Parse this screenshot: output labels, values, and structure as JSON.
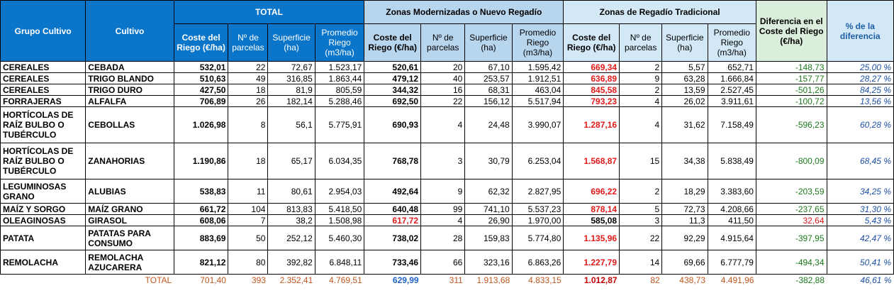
{
  "headers": {
    "grupo": "Grupo Cultivo",
    "cultivo": "Cultivo",
    "total": "TOTAL",
    "modernizadas": "Zonas Modernizadas o Nuevo Regadío",
    "tradicional": "Zonas de Regadío Tradicional",
    "diferencia": "Diferencia en el Coste del Riego (€/ha)",
    "pct": "% de la diferencia",
    "coste": "Coste del Riego (€/ha)",
    "parcelas": "Nº de parcelas",
    "superficie": "Superficie (ha)",
    "promedio": "Promedio Riego (m3/ha)"
  },
  "rows": [
    {
      "grupo": "CEREALES",
      "cultivo": "CEBADA",
      "t_coste": "532,01",
      "t_parc": "22",
      "t_sup": "72,67",
      "t_prom": "1.523,17",
      "m_coste": "520,61",
      "m_parc": "20",
      "m_sup": "67,10",
      "m_prom": "1.595,42",
      "r_coste": "669,34",
      "r_parc": "2",
      "r_sup": "5,57",
      "r_prom": "652,71",
      "dif": "-148,73",
      "pct": "25,00 %"
    },
    {
      "grupo": "CEREALES",
      "cultivo": "TRIGO BLANDO",
      "t_coste": "510,63",
      "t_parc": "49",
      "t_sup": "316,85",
      "t_prom": "1.863,44",
      "m_coste": "479,12",
      "m_parc": "40",
      "m_sup": "253,57",
      "m_prom": "1.912,51",
      "r_coste": "636,89",
      "r_parc": "9",
      "r_sup": "63,28",
      "r_prom": "1.666,84",
      "dif": "-157,77",
      "pct": "28,27 %"
    },
    {
      "grupo": "CEREALES",
      "cultivo": "TRIGO DURO",
      "t_coste": "427,50",
      "t_parc": "18",
      "t_sup": "81,9",
      "t_prom": "805,59",
      "m_coste": "344,32",
      "m_parc": "16",
      "m_sup": "68,31",
      "m_prom": "463,04",
      "r_coste": "845,58",
      "r_parc": "2",
      "r_sup": "13,59",
      "r_prom": "2.527,45",
      "dif": "-501,26",
      "pct": "84,25 %"
    },
    {
      "grupo": "FORRAJERAS",
      "cultivo": "ALFALFA",
      "t_coste": "706,89",
      "t_parc": "26",
      "t_sup": "182,14",
      "t_prom": "5.288,46",
      "m_coste": "692,50",
      "m_parc": "22",
      "m_sup": "156,12",
      "m_prom": "5.517,94",
      "r_coste": "793,23",
      "r_parc": "4",
      "r_sup": "26,02",
      "r_prom": "3.911,61",
      "dif": "-100,72",
      "pct": "13,56 %"
    },
    {
      "grupo": "HORTÍCOLAS DE RAÍZ BULBO O TUBÉRCULO",
      "cultivo": "CEBOLLAS",
      "t_coste": "1.026,98",
      "t_parc": "8",
      "t_sup": "56,1",
      "t_prom": "5.775,91",
      "m_coste": "690,93",
      "m_parc": "4",
      "m_sup": "24,48",
      "m_prom": "3.990,07",
      "r_coste": "1.287,16",
      "r_parc": "4",
      "r_sup": "31,62",
      "r_prom": "7.158,49",
      "dif": "-596,23",
      "pct": "60,28 %"
    },
    {
      "grupo": "HORTÍCOLAS DE RAÍZ BULBO O TUBÉRCULO",
      "cultivo": "ZANAHORIAS",
      "t_coste": "1.190,86",
      "t_parc": "18",
      "t_sup": "65,17",
      "t_prom": "6.034,35",
      "m_coste": "768,78",
      "m_parc": "3",
      "m_sup": "30,79",
      "m_prom": "6.253,04",
      "r_coste": "1.568,87",
      "r_parc": "15",
      "r_sup": "34,38",
      "r_prom": "5.838,49",
      "dif": "-800,09",
      "pct": "68,45 %"
    },
    {
      "grupo": "LEGUMINOSAS GRANO",
      "cultivo": "ALUBIAS",
      "t_coste": "538,83",
      "t_parc": "11",
      "t_sup": "80,61",
      "t_prom": "2.954,03",
      "m_coste": "492,64",
      "m_parc": "9",
      "m_sup": "62,32",
      "m_prom": "2.827,95",
      "r_coste": "696,22",
      "r_parc": "2",
      "r_sup": "18,29",
      "r_prom": "3.383,60",
      "dif": "-203,59",
      "pct": "34,25 %"
    },
    {
      "grupo": "MAÍZ Y SORGO",
      "cultivo": "MAÍZ GRANO",
      "t_coste": "661,72",
      "t_parc": "104",
      "t_sup": "813,83",
      "t_prom": "5.418,50",
      "m_coste": "640,48",
      "m_parc": "99",
      "m_sup": "741,10",
      "m_prom": "5.537,23",
      "r_coste": "878,14",
      "r_parc": "5",
      "r_sup": "72,73",
      "r_prom": "4.208,66",
      "dif": "-237,65",
      "pct": "31,30 %"
    },
    {
      "grupo": "OLEAGINOSAS",
      "cultivo": "GIRASOL",
      "t_coste": "608,06",
      "t_parc": "7",
      "t_sup": "38,2",
      "t_prom": "1.508,98",
      "m_coste": "617,72",
      "m_parc": "4",
      "m_sup": "26,90",
      "m_prom": "1.970,00",
      "r_coste": "585,08",
      "r_parc": "3",
      "r_sup": "11,3",
      "r_prom": "411,50",
      "dif": "32,64",
      "pct": "5,43 %"
    },
    {
      "grupo": "PATATA",
      "cultivo": "PATATAS PARA CONSUMO",
      "t_coste": "883,69",
      "t_parc": "50",
      "t_sup": "252,12",
      "t_prom": "5.460,30",
      "m_coste": "738,02",
      "m_parc": "28",
      "m_sup": "159,83",
      "m_prom": "5.774,80",
      "r_coste": "1.135,96",
      "r_parc": "22",
      "r_sup": "92,29",
      "r_prom": "4.915,64",
      "dif": "-397,95",
      "pct": "42,47 %"
    },
    {
      "grupo": "REMOLACHA",
      "cultivo": "REMOLACHA AZUCARERA",
      "t_coste": "821,12",
      "t_parc": "80",
      "t_sup": "392,82",
      "t_prom": "6.848,11",
      "m_coste": "733,46",
      "m_parc": "66",
      "m_sup": "323,16",
      "m_prom": "6.863,26",
      "r_coste": "1.227,79",
      "r_parc": "14",
      "r_sup": "69,66",
      "r_prom": "6.777,79",
      "dif": "-494,34",
      "pct": "50,41 %"
    }
  ],
  "total": {
    "label": "TOTAL",
    "t_coste": "701,40",
    "t_parc": "393",
    "t_sup": "2.352,41",
    "t_prom": "4.769,51",
    "m_coste": "629,99",
    "m_parc": "311",
    "m_sup": "1.913,68",
    "m_prom": "4.833,15",
    "r_coste": "1.012,87",
    "r_parc": "82",
    "r_sup": "438,73",
    "r_prom": "4.491,96",
    "dif": "-382,88",
    "pct": "46,61 %"
  }
}
